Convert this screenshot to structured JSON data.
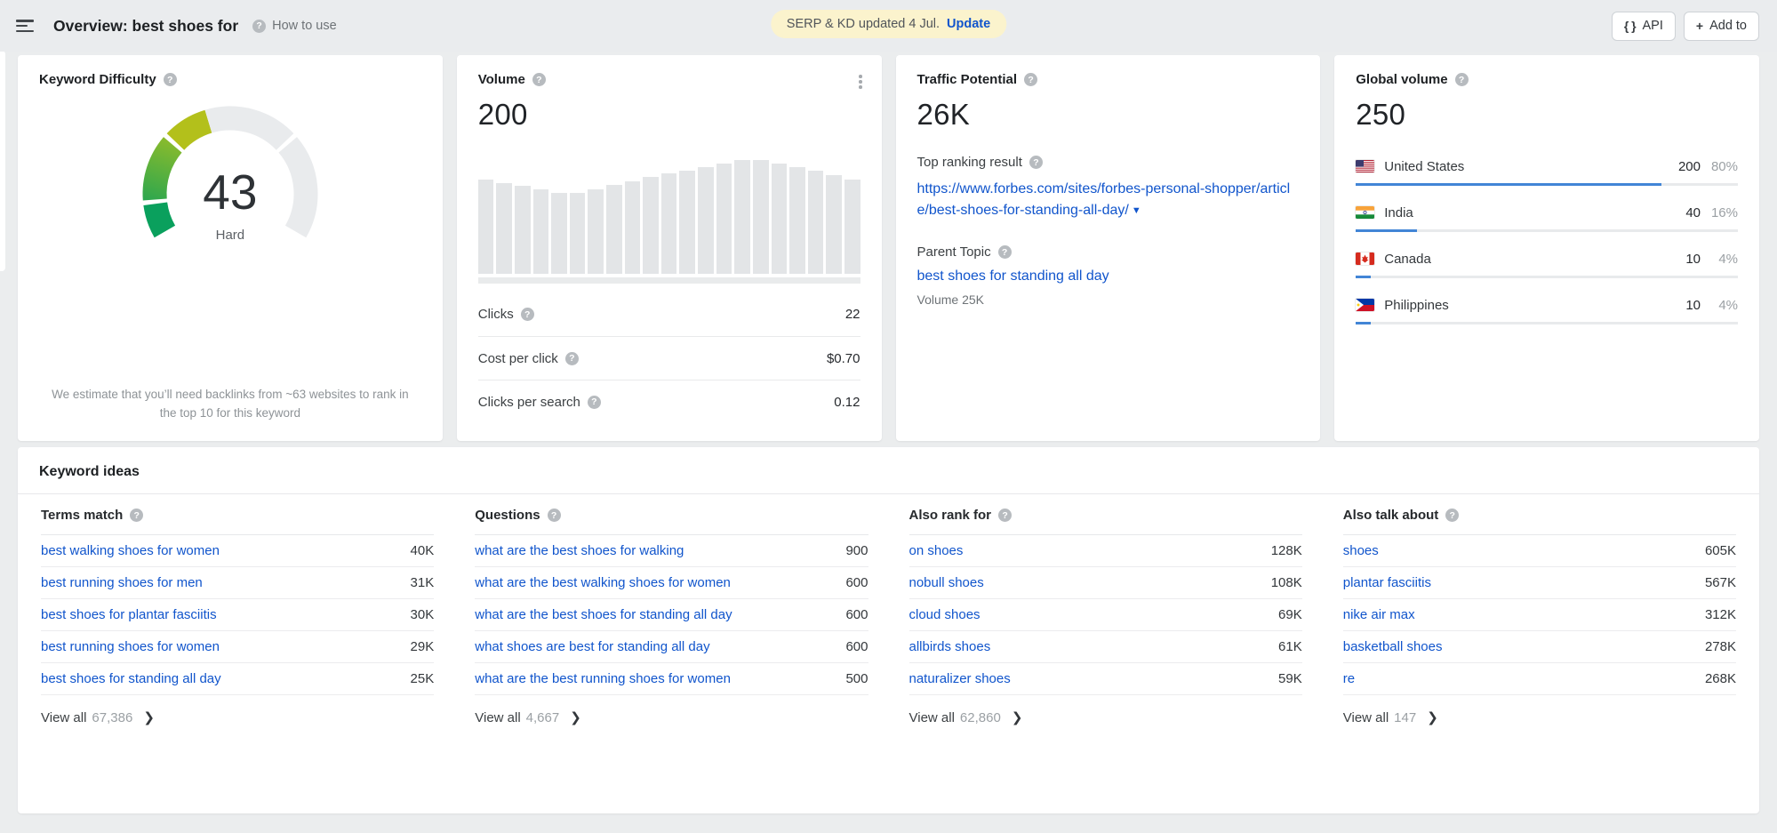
{
  "colors": {
    "link_blue": "#1155cc",
    "bar_blue": "#4285d6",
    "pill_bg": "#fbf3cd",
    "bar_gray": "#e3e5e7"
  },
  "topbar": {
    "title": "Overview: best shoes for",
    "how_to_use": "How to use",
    "update_notice": "SERP & KD updated 4 Jul.",
    "update_link": "Update",
    "api_label": "API",
    "add_to_label": "Add to"
  },
  "cards": {
    "keyword_difficulty": {
      "title": "Keyword Difficulty",
      "value": "43",
      "label": "Hard",
      "note": "We estimate that you’ll need backlinks from ~63 websites to rank in the top 10 for this keyword"
    },
    "volume": {
      "title": "Volume",
      "value": "200",
      "stats": [
        {
          "label": "Clicks",
          "value": "22"
        },
        {
          "label": "Cost per click",
          "value": "$0.70"
        },
        {
          "label": "Clicks per search",
          "value": "0.12"
        }
      ]
    },
    "traffic_potential": {
      "title": "Traffic Potential",
      "value": "26K",
      "top_ranking_label": "Top ranking result",
      "url": "https://www.forbes.com/sites/forbes-personal-shopper/article/best-shoes-for-standing-all-day/",
      "parent_topic_label": "Parent Topic",
      "parent_topic": "best shoes for standing all day",
      "parent_volume": "Volume 25K"
    },
    "global_volume": {
      "title": "Global volume",
      "value": "250",
      "countries": [
        {
          "name": "United States",
          "flag": "us",
          "value": "200",
          "percent": "80%",
          "bar": 80
        },
        {
          "name": "India",
          "flag": "in",
          "value": "40",
          "percent": "16%",
          "bar": 16
        },
        {
          "name": "Canada",
          "flag": "ca",
          "value": "10",
          "percent": "4%",
          "bar": 4
        },
        {
          "name": "Philippines",
          "flag": "ph",
          "value": "10",
          "percent": "4%",
          "bar": 4
        }
      ]
    }
  },
  "keyword_ideas": {
    "title": "Keyword ideas",
    "view_all_label": "View all",
    "columns": [
      {
        "header": "Terms match",
        "rows": [
          {
            "keyword": "best walking shoes for women",
            "value": "40K"
          },
          {
            "keyword": "best running shoes for men",
            "value": "31K"
          },
          {
            "keyword": "best shoes for plantar fasciitis",
            "value": "30K"
          },
          {
            "keyword": "best running shoes for women",
            "value": "29K"
          },
          {
            "keyword": "best shoes for standing all day",
            "value": "25K"
          }
        ],
        "view_all_count": "67,386"
      },
      {
        "header": "Questions",
        "rows": [
          {
            "keyword": "what are the best shoes for walking",
            "value": "900"
          },
          {
            "keyword": "what are the best walking shoes for women",
            "value": "600"
          },
          {
            "keyword": "what are the best shoes for standing all day",
            "value": "600"
          },
          {
            "keyword": "what shoes are best for standing all day",
            "value": "600"
          },
          {
            "keyword": "what are the best running shoes for women",
            "value": "500"
          }
        ],
        "view_all_count": "4,667"
      },
      {
        "header": "Also rank for",
        "rows": [
          {
            "keyword": "on shoes",
            "value": "128K"
          },
          {
            "keyword": "nobull shoes",
            "value": "108K"
          },
          {
            "keyword": "cloud shoes",
            "value": "69K"
          },
          {
            "keyword": "allbirds shoes",
            "value": "61K"
          },
          {
            "keyword": "naturalizer shoes",
            "value": "59K"
          }
        ],
        "view_all_count": "62,860"
      },
      {
        "header": "Also talk about",
        "rows": [
          {
            "keyword": "shoes",
            "value": "605K"
          },
          {
            "keyword": "plantar fasciitis",
            "value": "567K"
          },
          {
            "keyword": "nike air max",
            "value": "312K"
          },
          {
            "keyword": "basketball shoes",
            "value": "278K"
          },
          {
            "keyword": "re",
            "value": "268K"
          }
        ],
        "view_all_count": "147"
      }
    ]
  },
  "chart_data": [
    {
      "type": "bar",
      "title": "Volume trend (monthly search volume, unlabeled axes)",
      "values": [
        83,
        80,
        77,
        74,
        71,
        71,
        74,
        78,
        81,
        85,
        88,
        91,
        94,
        97,
        100,
        100,
        97,
        94,
        91,
        87,
        83
      ],
      "xlabel": "",
      "ylabel": "",
      "grid": false,
      "note": "values are relative bar heights in % of tallest bar"
    },
    {
      "type": "gauge",
      "title": "Keyword Difficulty",
      "value": 43,
      "max": 100,
      "label": "Hard",
      "segment_boundaries": [
        10,
        30,
        70
      ],
      "colors": {
        "seg1": "#0aa05d",
        "seg2_start": "#2aa64f",
        "seg2_end": "#8abb2c",
        "seg3": "#b3c01b",
        "track": "#e9ebed"
      }
    }
  ]
}
